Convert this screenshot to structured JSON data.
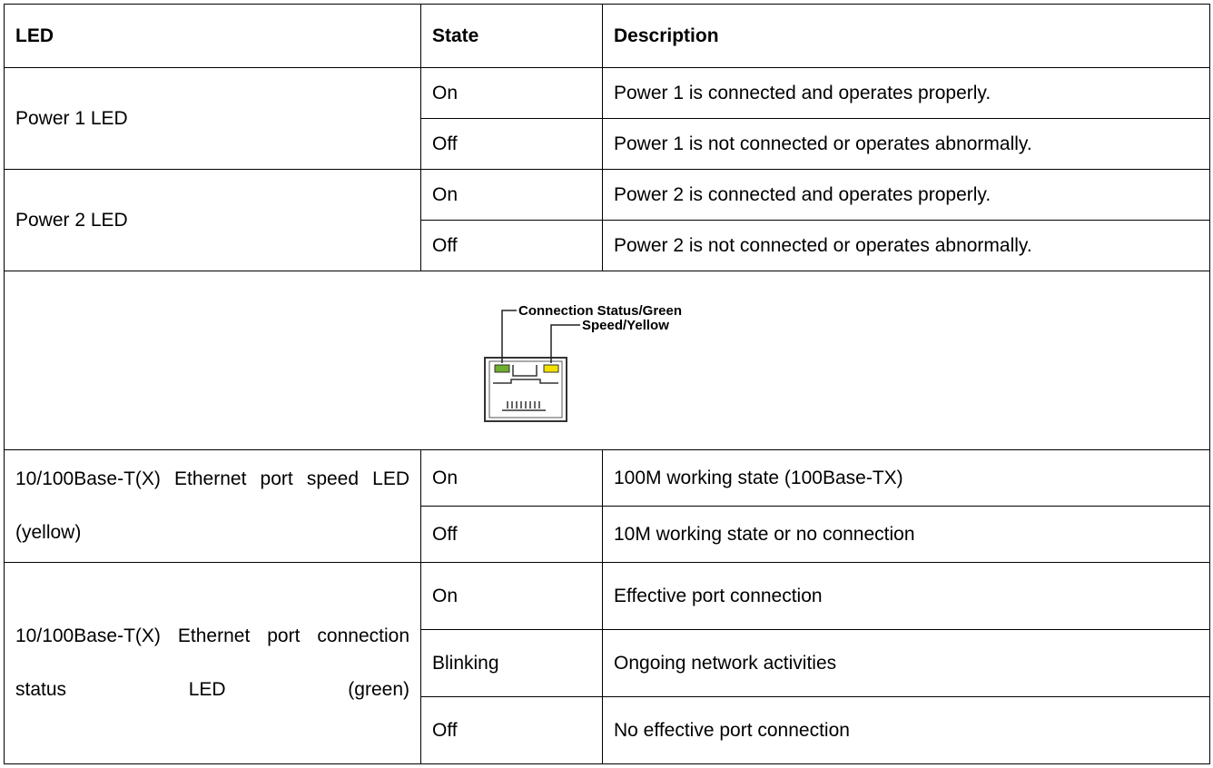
{
  "table": {
    "header": [
      "LED",
      "State",
      "Description"
    ],
    "power1": {
      "led": "Power 1 LED",
      "rows": [
        [
          "On",
          "Power 1 is connected and operates properly."
        ],
        [
          "Off",
          "Power 1 is not connected or operates abnormally."
        ]
      ]
    },
    "power2": {
      "led": "Power 2 LED",
      "rows": [
        [
          "On",
          "Power 2 is connected and operates properly."
        ],
        [
          "Off",
          "Power 2 is not connected or operates abnormally."
        ]
      ]
    },
    "figure": {
      "labels": [
        "Connection Status/Green",
        "Speed/Yellow"
      ]
    },
    "speed": {
      "led": "10/100Base-T(X) Ethernet port speed LED (yellow)",
      "rows": [
        [
          "On",
          "100M working state (100Base-TX)"
        ],
        [
          "Off",
          "10M working state or no connection"
        ]
      ]
    },
    "status": {
      "led": "10/100Base-T(X) Ethernet port connection status LED (green)",
      "rows": [
        [
          "On",
          "Effective port connection"
        ],
        [
          "Blinking",
          "Ongoing network activities"
        ],
        [
          "Off",
          "No effective port connection"
        ]
      ]
    }
  }
}
